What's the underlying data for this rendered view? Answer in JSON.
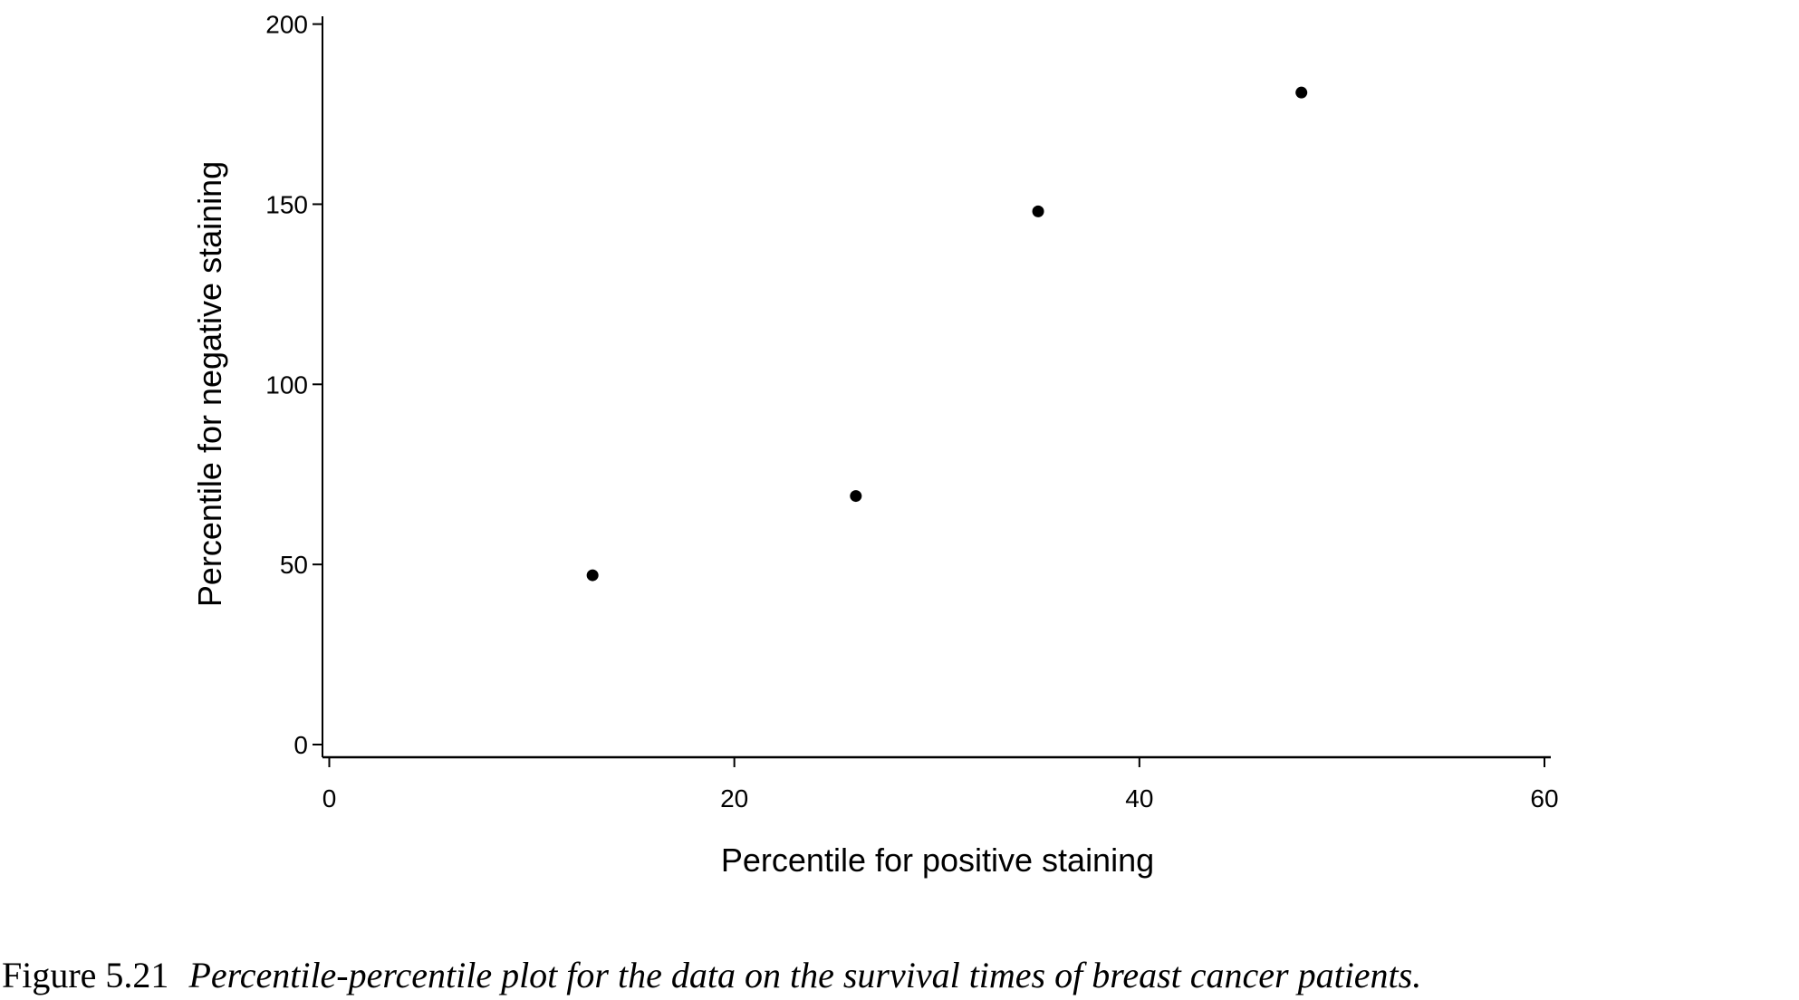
{
  "chart_data": {
    "type": "scatter",
    "xlabel": "Percentile for positive staining",
    "ylabel": "Percentile for negative staining",
    "x": [
      13,
      26,
      35,
      48
    ],
    "series": [
      {
        "color": "#000000",
        "values": [
          47,
          69,
          148,
          181
        ]
      }
    ],
    "xlim": [
      0,
      60
    ],
    "ylim": [
      0,
      200
    ],
    "xticks": [
      0,
      20,
      40,
      60
    ],
    "yticks": [
      0,
      50,
      100,
      150,
      200
    ],
    "grid": false
  },
  "caption": {
    "label": "Figure 5.21",
    "text": "Percentile-percentile plot for the data on the survival times of breast cancer patients."
  }
}
